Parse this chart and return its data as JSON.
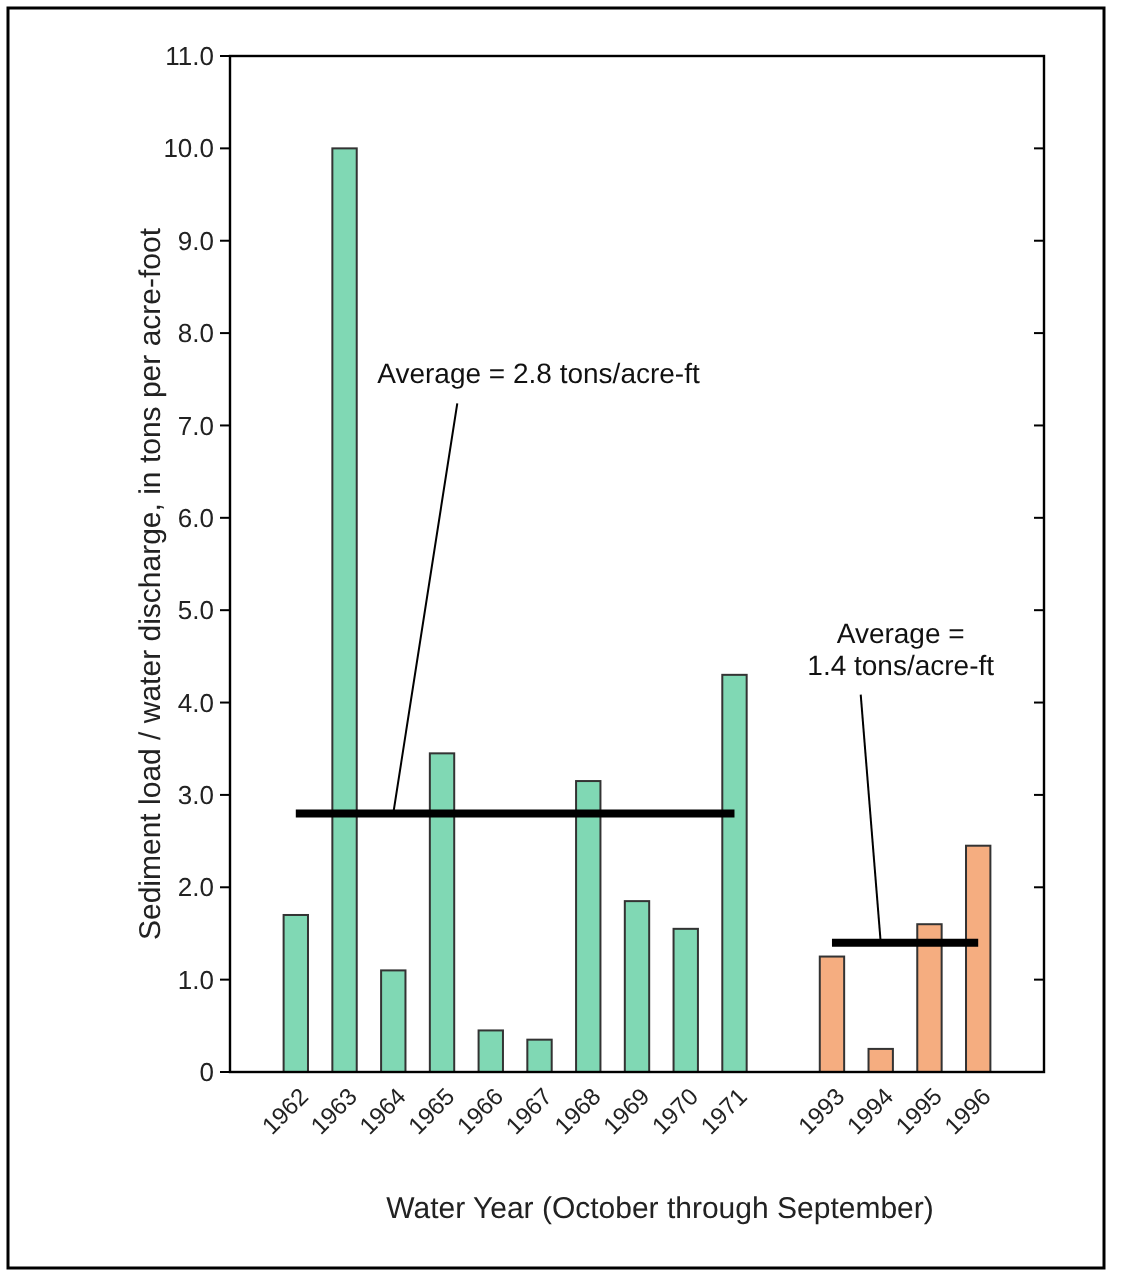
{
  "chart_data": {
    "type": "bar",
    "xlabel": "Water Year (October through September)",
    "ylabel": "Sediment load / water discharge, in tons per acre-foot",
    "categories": [
      "1962",
      "1963",
      "1964",
      "1965",
      "1966",
      "1967",
      "1968",
      "1969",
      "1970",
      "1971",
      null,
      "1993",
      "1994",
      "1995",
      "1996"
    ],
    "series": [
      {
        "colors": [
          "#80d8b4",
          "#80d8b4",
          "#80d8b4",
          "#80d8b4",
          "#80d8b4",
          "#80d8b4",
          "#80d8b4",
          "#80d8b4",
          "#80d8b4",
          "#80d8b4",
          null,
          "#f5ad80",
          "#f5ad80",
          "#f5ad80",
          "#f5ad80"
        ],
        "values": [
          1.7,
          10.0,
          1.1,
          3.45,
          0.45,
          0.35,
          3.15,
          1.85,
          1.55,
          4.3,
          null,
          1.25,
          0.25,
          1.6,
          2.45
        ]
      },
      {
        "type": "line",
        "color": "#000000",
        "values": [
          2.8,
          2.8,
          2.8,
          2.8,
          2.8,
          2.8,
          2.8,
          2.8,
          2.8,
          2.8,
          null,
          null,
          null,
          null,
          null
        ]
      },
      {
        "type": "line",
        "color": "#000000",
        "values": [
          null,
          null,
          null,
          null,
          null,
          null,
          null,
          null,
          null,
          null,
          null,
          1.4,
          1.4,
          1.4,
          1.4
        ]
      }
    ],
    "annotations": [
      {
        "text": "Average = 2.8 tons/acre-ft",
        "x": "1964",
        "y": 2.8
      },
      {
        "text": "Average =\n1.4 tons/acre-ft",
        "x": "1994",
        "y": 1.4
      }
    ],
    "ylim": [
      0,
      11
    ],
    "yticks": [
      0,
      {
        "value": 1,
        "label": "1.0"
      },
      {
        "value": 2,
        "label": "2.0"
      },
      {
        "value": 3,
        "label": "3.0"
      },
      {
        "value": 4,
        "label": "4.0"
      },
      {
        "value": 5,
        "label": "5.0"
      },
      {
        "value": 6,
        "label": "6.0"
      },
      {
        "value": 7,
        "label": "7.0"
      },
      {
        "value": 8,
        "label": "8.0"
      },
      {
        "value": 9,
        "label": "9.0"
      },
      {
        "value": 10,
        "label": "10.0"
      },
      {
        "value": 11,
        "label": "11.0"
      }
    ],
    "grid": false
  }
}
